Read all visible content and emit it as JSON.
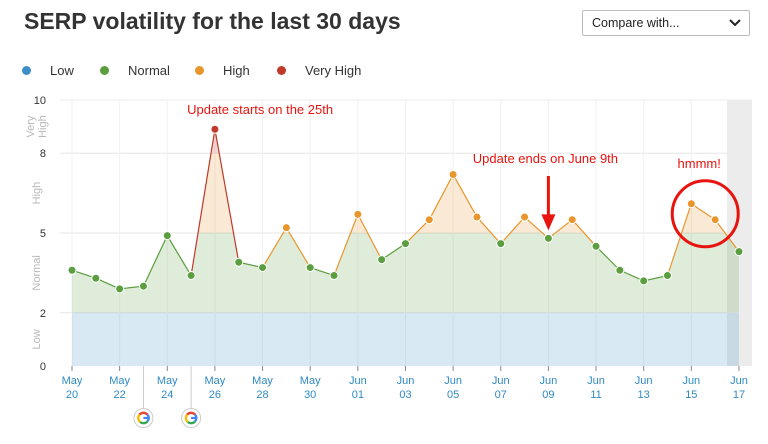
{
  "page": {
    "title": "SERP volatility for the last 30 days",
    "compare": {
      "label": "Compare with...",
      "icon": "chevron-down-icon"
    }
  },
  "legend": [
    {
      "label": "Low",
      "color": "#3b8fc6"
    },
    {
      "label": "Normal",
      "color": "#5a9e3f"
    },
    {
      "label": "High",
      "color": "#e8962c"
    },
    {
      "label": "Very High",
      "color": "#c0392b"
    }
  ],
  "chart_data": {
    "type": "area",
    "x": [
      "May 20",
      "May 21",
      "May 22",
      "May 23",
      "May 24",
      "May 25",
      "May 26",
      "May 27",
      "May 28",
      "May 29",
      "May 30",
      "May 31",
      "Jun 01",
      "Jun 02",
      "Jun 03",
      "Jun 04",
      "Jun 05",
      "Jun 06",
      "Jun 07",
      "Jun 08",
      "Jun 09",
      "Jun 10",
      "Jun 11",
      "Jun 12",
      "Jun 13",
      "Jun 14",
      "Jun 15",
      "Jun 16",
      "Jun 17"
    ],
    "values": [
      3.6,
      3.3,
      2.9,
      3.0,
      4.9,
      3.4,
      8.9,
      3.9,
      3.7,
      5.2,
      3.7,
      3.4,
      5.7,
      4.0,
      4.6,
      5.5,
      7.2,
      5.6,
      4.6,
      5.6,
      4.8,
      5.5,
      4.5,
      3.6,
      3.2,
      3.4,
      6.1,
      5.5,
      4.3
    ],
    "ylim": [
      0,
      10
    ],
    "yticks": [
      "0",
      "2",
      "5",
      "8",
      "10"
    ],
    "zones": [
      {
        "label": "Low",
        "from": 0,
        "to": 2,
        "color": "#3b8fc6"
      },
      {
        "label": "Normal",
        "from": 2,
        "to": 5,
        "color": "#5a9e3f"
      },
      {
        "label": "High",
        "from": 5,
        "to": 8,
        "color": "#e8962c"
      },
      {
        "label": "Very High",
        "from": 8,
        "to": 10,
        "color": "#c0392b"
      }
    ],
    "xticks": [
      {
        "month": "May",
        "day": "20"
      },
      {
        "month": "May",
        "day": "22"
      },
      {
        "month": "May",
        "day": "24"
      },
      {
        "month": "May",
        "day": "26"
      },
      {
        "month": "May",
        "day": "28"
      },
      {
        "month": "May",
        "day": "30"
      },
      {
        "month": "Jun",
        "day": "01"
      },
      {
        "month": "Jun",
        "day": "03"
      },
      {
        "month": "Jun",
        "day": "05"
      },
      {
        "month": "Jun",
        "day": "07"
      },
      {
        "month": "Jun",
        "day": "09"
      },
      {
        "month": "Jun",
        "day": "11"
      },
      {
        "month": "Jun",
        "day": "13"
      },
      {
        "month": "Jun",
        "day": "15"
      },
      {
        "month": "Jun",
        "day": "17"
      }
    ],
    "google_update_markers": [
      "May 23",
      "May 25"
    ],
    "highlighted_last_day": "Jun 17",
    "annotations": [
      {
        "text": "Update starts on the 25th",
        "color": "#e8140f"
      },
      {
        "text": "Update ends on June 9th",
        "color": "#e8140f"
      },
      {
        "text": "hmmm!",
        "color": "#e8140f"
      }
    ],
    "grid": true
  }
}
